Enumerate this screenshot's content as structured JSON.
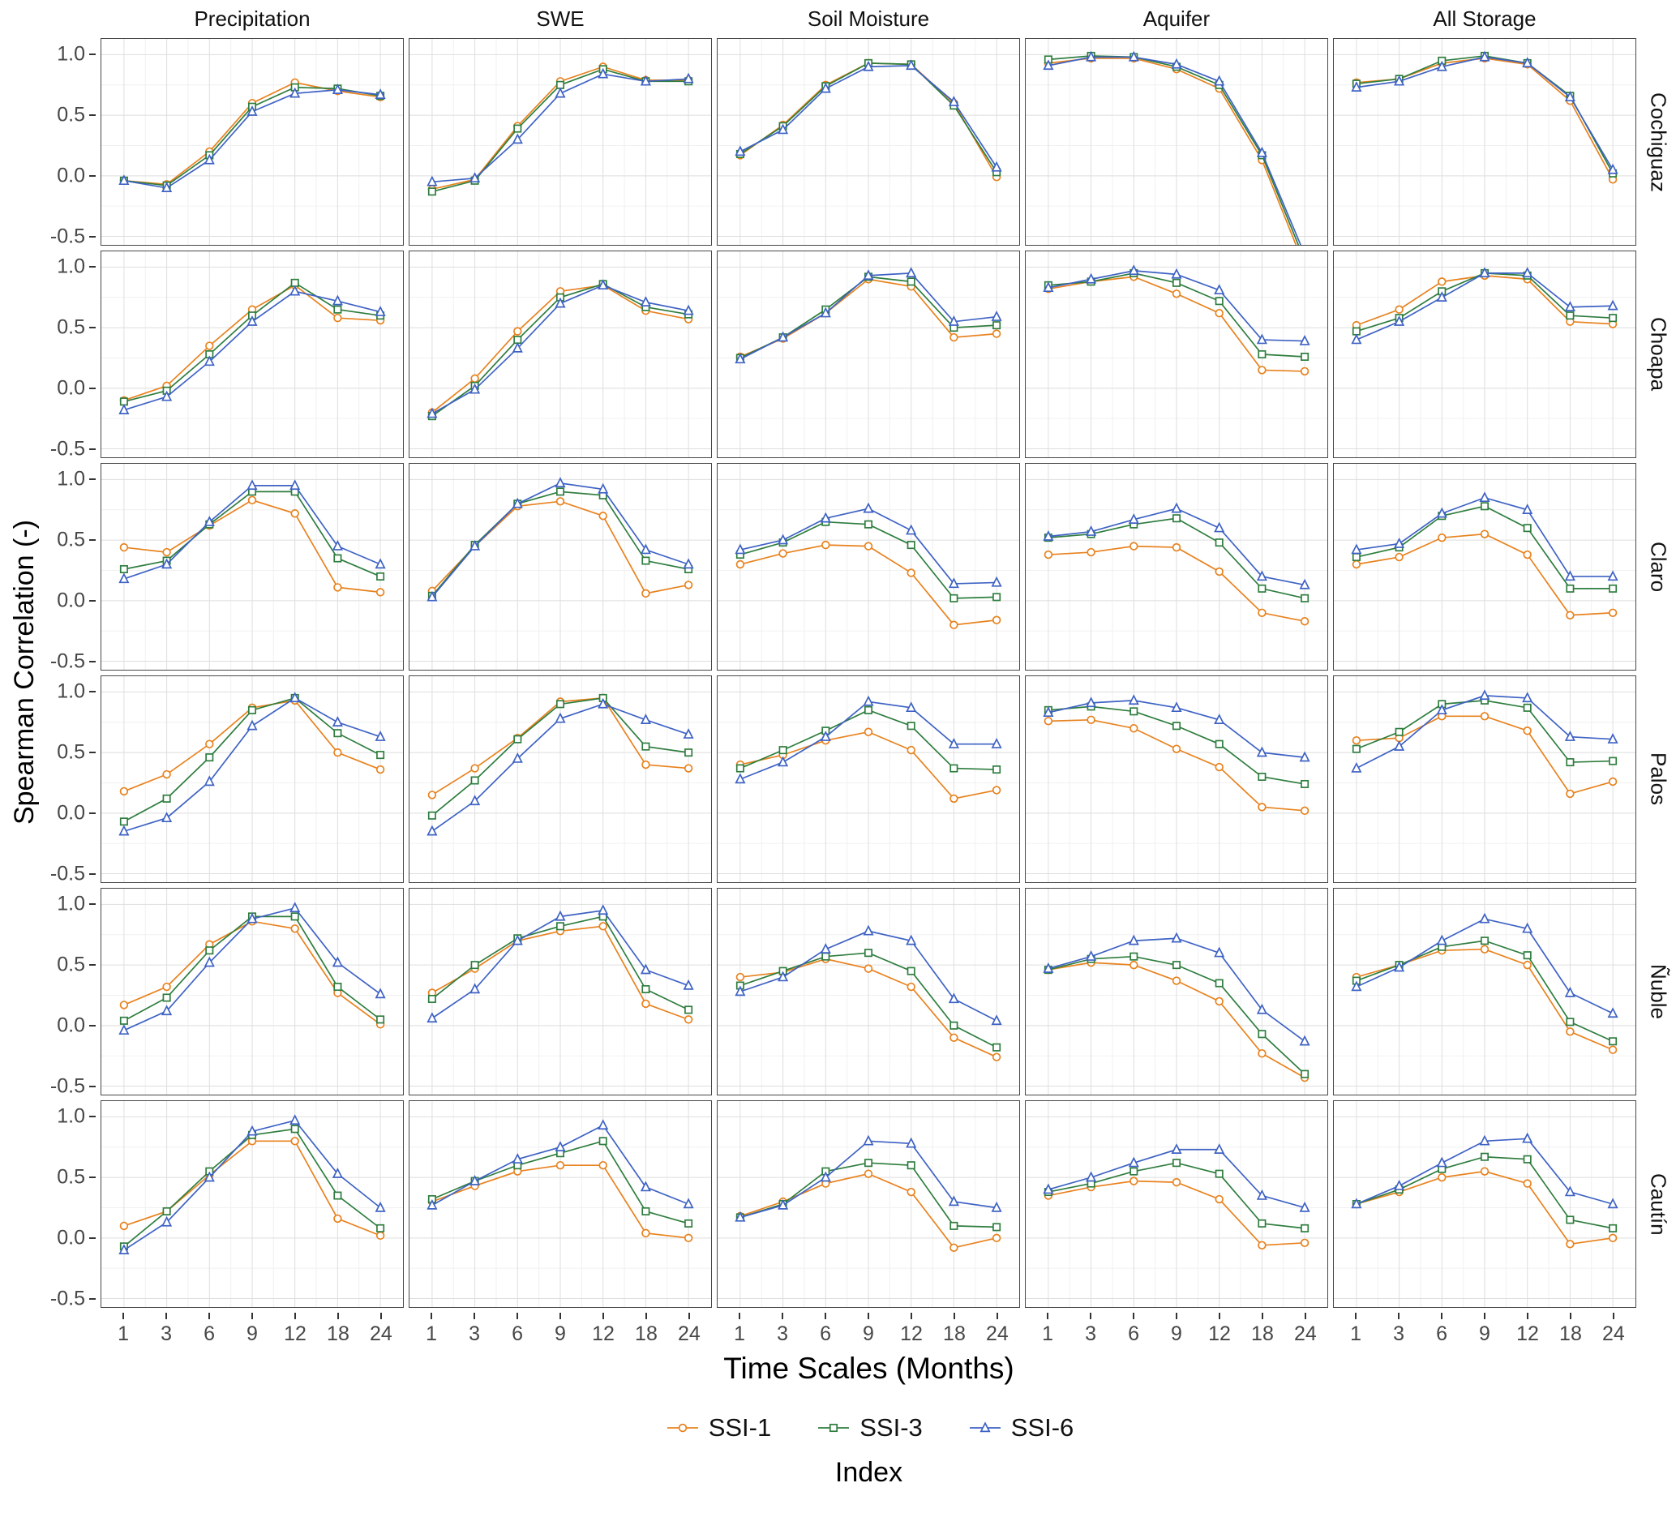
{
  "chart_data": {
    "type": "line",
    "x": [
      1,
      3,
      6,
      9,
      12,
      18,
      24
    ],
    "x_tick_labels": [
      "1",
      "3",
      "6",
      "9",
      "12",
      "18",
      "24"
    ],
    "y_ticks": [
      1.0,
      0.5,
      0.0,
      -0.5
    ],
    "y_tick_labels": [
      "1.0",
      "0.5",
      "0.0",
      "-0.5"
    ],
    "y_minor": [
      0.75,
      0.25,
      -0.25
    ],
    "ylim": [
      -0.57,
      1.13
    ],
    "xlabel": "Time Scales (Months)",
    "ylabel": "Spearman Correlation (-)",
    "legend_title": "Index",
    "grid": true,
    "legend_position": "bottom",
    "col_facets": [
      "Precipitation",
      "SWE",
      "Soil Moisture",
      "Aquifer",
      "All Storage"
    ],
    "row_facets": [
      "Cochiguaz",
      "Choapa",
      "Claro",
      "Palos",
      "Ñuble",
      "Cautín"
    ],
    "series_meta": [
      {
        "name": "SSI-1",
        "color": "#E8821E",
        "marker": "circle"
      },
      {
        "name": "SSI-3",
        "color": "#2E7D3E",
        "marker": "square"
      },
      {
        "name": "SSI-6",
        "color": "#3E62C4",
        "marker": "triangle"
      }
    ],
    "panels": [
      {
        "row": "Cochiguaz",
        "col": "Precipitation",
        "series": {
          "SSI-1": [
            -0.04,
            -0.07,
            0.2,
            0.6,
            0.77,
            0.7,
            0.65
          ],
          "SSI-3": [
            -0.04,
            -0.08,
            0.17,
            0.57,
            0.73,
            0.72,
            0.66
          ],
          "SSI-6": [
            -0.04,
            -0.1,
            0.13,
            0.53,
            0.68,
            0.71,
            0.67
          ]
        }
      },
      {
        "row": "Cochiguaz",
        "col": "SWE",
        "series": {
          "SSI-1": [
            -0.11,
            -0.03,
            0.41,
            0.78,
            0.9,
            0.79,
            0.79
          ],
          "SSI-3": [
            -0.13,
            -0.04,
            0.39,
            0.75,
            0.88,
            0.78,
            0.78
          ],
          "SSI-6": [
            -0.05,
            -0.02,
            0.3,
            0.68,
            0.84,
            0.78,
            0.8
          ]
        }
      },
      {
        "row": "Cochiguaz",
        "col": "Soil Moisture",
        "series": {
          "SSI-1": [
            0.17,
            0.42,
            0.75,
            0.93,
            0.92,
            0.6,
            -0.01
          ],
          "SSI-3": [
            0.18,
            0.41,
            0.74,
            0.93,
            0.92,
            0.58,
            0.03
          ],
          "SSI-6": [
            0.2,
            0.38,
            0.72,
            0.9,
            0.91,
            0.61,
            0.07
          ]
        }
      },
      {
        "row": "Cochiguaz",
        "col": "Aquifer",
        "series": {
          "SSI-1": [
            0.93,
            0.97,
            0.97,
            0.88,
            0.72,
            0.13,
            -0.75
          ],
          "SSI-3": [
            0.96,
            0.99,
            0.98,
            0.9,
            0.75,
            0.17,
            -0.7
          ],
          "SSI-6": [
            0.91,
            0.98,
            0.98,
            0.92,
            0.78,
            0.19,
            -0.65
          ]
        }
      },
      {
        "row": "Cochiguaz",
        "col": "All Storage",
        "series": {
          "SSI-1": [
            0.77,
            0.8,
            0.93,
            0.97,
            0.92,
            0.62,
            -0.03
          ],
          "SSI-3": [
            0.76,
            0.8,
            0.95,
            0.99,
            0.93,
            0.66,
            0.02
          ],
          "SSI-6": [
            0.73,
            0.78,
            0.9,
            0.98,
            0.93,
            0.65,
            0.05
          ]
        }
      },
      {
        "row": "Choapa",
        "col": "Precipitation",
        "series": {
          "SSI-1": [
            -0.1,
            0.02,
            0.35,
            0.65,
            0.85,
            0.58,
            0.56
          ],
          "SSI-3": [
            -0.11,
            -0.02,
            0.28,
            0.6,
            0.87,
            0.65,
            0.6
          ],
          "SSI-6": [
            -0.18,
            -0.07,
            0.22,
            0.55,
            0.8,
            0.72,
            0.63
          ]
        }
      },
      {
        "row": "Choapa",
        "col": "SWE",
        "series": {
          "SSI-1": [
            -0.2,
            0.08,
            0.47,
            0.8,
            0.85,
            0.64,
            0.57
          ],
          "SSI-3": [
            -0.23,
            0.02,
            0.4,
            0.75,
            0.86,
            0.67,
            0.61
          ],
          "SSI-6": [
            -0.21,
            -0.01,
            0.33,
            0.7,
            0.85,
            0.71,
            0.64
          ]
        }
      },
      {
        "row": "Choapa",
        "col": "Soil Moisture",
        "series": {
          "SSI-1": [
            0.26,
            0.41,
            0.62,
            0.9,
            0.84,
            0.42,
            0.45
          ],
          "SSI-3": [
            0.25,
            0.42,
            0.65,
            0.92,
            0.88,
            0.5,
            0.52
          ],
          "SSI-6": [
            0.24,
            0.42,
            0.62,
            0.93,
            0.95,
            0.55,
            0.59
          ]
        }
      },
      {
        "row": "Choapa",
        "col": "Aquifer",
        "series": {
          "SSI-1": [
            0.82,
            0.88,
            0.92,
            0.78,
            0.62,
            0.15,
            0.14
          ],
          "SSI-3": [
            0.85,
            0.88,
            0.95,
            0.87,
            0.72,
            0.28,
            0.26
          ],
          "SSI-6": [
            0.83,
            0.9,
            0.97,
            0.94,
            0.81,
            0.4,
            0.39
          ]
        }
      },
      {
        "row": "Choapa",
        "col": "All Storage",
        "series": {
          "SSI-1": [
            0.52,
            0.65,
            0.88,
            0.93,
            0.9,
            0.55,
            0.53
          ],
          "SSI-3": [
            0.47,
            0.58,
            0.8,
            0.95,
            0.93,
            0.6,
            0.58
          ],
          "SSI-6": [
            0.4,
            0.55,
            0.75,
            0.95,
            0.95,
            0.67,
            0.68
          ]
        }
      },
      {
        "row": "Claro",
        "col": "Precipitation",
        "series": {
          "SSI-1": [
            0.44,
            0.4,
            0.62,
            0.83,
            0.72,
            0.11,
            0.07
          ],
          "SSI-3": [
            0.26,
            0.33,
            0.63,
            0.9,
            0.9,
            0.35,
            0.2
          ],
          "SSI-6": [
            0.18,
            0.3,
            0.65,
            0.95,
            0.95,
            0.45,
            0.3
          ]
        }
      },
      {
        "row": "Claro",
        "col": "SWE",
        "series": {
          "SSI-1": [
            0.08,
            0.45,
            0.78,
            0.82,
            0.7,
            0.06,
            0.13
          ],
          "SSI-3": [
            0.04,
            0.46,
            0.8,
            0.9,
            0.87,
            0.33,
            0.26
          ],
          "SSI-6": [
            0.03,
            0.45,
            0.8,
            0.97,
            0.92,
            0.42,
            0.3
          ]
        }
      },
      {
        "row": "Claro",
        "col": "Soil Moisture",
        "series": {
          "SSI-1": [
            0.3,
            0.39,
            0.46,
            0.45,
            0.23,
            -0.2,
            -0.16
          ],
          "SSI-3": [
            0.38,
            0.48,
            0.65,
            0.63,
            0.46,
            0.02,
            0.03
          ],
          "SSI-6": [
            0.42,
            0.5,
            0.68,
            0.76,
            0.58,
            0.14,
            0.15
          ]
        }
      },
      {
        "row": "Claro",
        "col": "Aquifer",
        "series": {
          "SSI-1": [
            0.38,
            0.4,
            0.45,
            0.44,
            0.24,
            -0.1,
            -0.17
          ],
          "SSI-3": [
            0.52,
            0.55,
            0.63,
            0.68,
            0.48,
            0.1,
            0.02
          ],
          "SSI-6": [
            0.53,
            0.57,
            0.67,
            0.76,
            0.6,
            0.2,
            0.13
          ]
        }
      },
      {
        "row": "Claro",
        "col": "All Storage",
        "series": {
          "SSI-1": [
            0.3,
            0.36,
            0.52,
            0.55,
            0.38,
            -0.12,
            -0.1
          ],
          "SSI-3": [
            0.36,
            0.44,
            0.7,
            0.78,
            0.6,
            0.1,
            0.1
          ],
          "SSI-6": [
            0.42,
            0.47,
            0.72,
            0.85,
            0.75,
            0.2,
            0.2
          ]
        }
      },
      {
        "row": "Palos",
        "col": "Precipitation",
        "series": {
          "SSI-1": [
            0.18,
            0.32,
            0.57,
            0.87,
            0.93,
            0.5,
            0.36
          ],
          "SSI-3": [
            -0.07,
            0.12,
            0.46,
            0.85,
            0.95,
            0.66,
            0.48
          ],
          "SSI-6": [
            -0.15,
            -0.04,
            0.26,
            0.72,
            0.95,
            0.75,
            0.63
          ]
        }
      },
      {
        "row": "Palos",
        "col": "SWE",
        "series": {
          "SSI-1": [
            0.15,
            0.37,
            0.62,
            0.92,
            0.95,
            0.4,
            0.37
          ],
          "SSI-3": [
            -0.02,
            0.27,
            0.61,
            0.9,
            0.95,
            0.55,
            0.5
          ],
          "SSI-6": [
            -0.15,
            0.1,
            0.45,
            0.78,
            0.9,
            0.77,
            0.65
          ]
        }
      },
      {
        "row": "Palos",
        "col": "Soil Moisture",
        "series": {
          "SSI-1": [
            0.4,
            0.48,
            0.6,
            0.67,
            0.52,
            0.12,
            0.19
          ],
          "SSI-3": [
            0.37,
            0.52,
            0.68,
            0.85,
            0.72,
            0.37,
            0.36
          ],
          "SSI-6": [
            0.28,
            0.42,
            0.63,
            0.92,
            0.87,
            0.57,
            0.57
          ]
        }
      },
      {
        "row": "Palos",
        "col": "Aquifer",
        "series": {
          "SSI-1": [
            0.76,
            0.77,
            0.7,
            0.53,
            0.38,
            0.05,
            0.02
          ],
          "SSI-3": [
            0.85,
            0.88,
            0.84,
            0.72,
            0.57,
            0.3,
            0.24
          ],
          "SSI-6": [
            0.83,
            0.91,
            0.93,
            0.87,
            0.77,
            0.5,
            0.46
          ]
        }
      },
      {
        "row": "Palos",
        "col": "All Storage",
        "series": {
          "SSI-1": [
            0.6,
            0.62,
            0.8,
            0.8,
            0.68,
            0.16,
            0.26
          ],
          "SSI-3": [
            0.53,
            0.67,
            0.9,
            0.93,
            0.87,
            0.42,
            0.43
          ],
          "SSI-6": [
            0.37,
            0.55,
            0.85,
            0.97,
            0.95,
            0.63,
            0.61
          ]
        }
      },
      {
        "row": "Ñuble",
        "col": "Precipitation",
        "series": {
          "SSI-1": [
            0.17,
            0.32,
            0.67,
            0.86,
            0.8,
            0.27,
            0.01
          ],
          "SSI-3": [
            0.04,
            0.23,
            0.62,
            0.9,
            0.9,
            0.32,
            0.05
          ],
          "SSI-6": [
            -0.04,
            0.12,
            0.52,
            0.88,
            0.97,
            0.52,
            0.26
          ]
        }
      },
      {
        "row": "Ñuble",
        "col": "SWE",
        "series": {
          "SSI-1": [
            0.27,
            0.47,
            0.7,
            0.78,
            0.82,
            0.18,
            0.05
          ],
          "SSI-3": [
            0.22,
            0.5,
            0.72,
            0.82,
            0.9,
            0.3,
            0.13
          ],
          "SSI-6": [
            0.06,
            0.3,
            0.7,
            0.9,
            0.95,
            0.46,
            0.33
          ]
        }
      },
      {
        "row": "Ñuble",
        "col": "Soil Moisture",
        "series": {
          "SSI-1": [
            0.4,
            0.44,
            0.55,
            0.47,
            0.32,
            -0.1,
            -0.26
          ],
          "SSI-3": [
            0.33,
            0.45,
            0.57,
            0.6,
            0.45,
            0.0,
            -0.18
          ],
          "SSI-6": [
            0.28,
            0.4,
            0.63,
            0.78,
            0.7,
            0.22,
            0.04
          ]
        }
      },
      {
        "row": "Ñuble",
        "col": "Aquifer",
        "series": {
          "SSI-1": [
            0.46,
            0.52,
            0.5,
            0.37,
            0.2,
            -0.23,
            -0.43
          ],
          "SSI-3": [
            0.46,
            0.55,
            0.57,
            0.5,
            0.35,
            -0.07,
            -0.4
          ],
          "SSI-6": [
            0.47,
            0.57,
            0.7,
            0.72,
            0.6,
            0.13,
            -0.13
          ]
        }
      },
      {
        "row": "Ñuble",
        "col": "All Storage",
        "series": {
          "SSI-1": [
            0.4,
            0.5,
            0.62,
            0.63,
            0.5,
            -0.05,
            -0.2
          ],
          "SSI-3": [
            0.37,
            0.5,
            0.65,
            0.7,
            0.58,
            0.03,
            -0.13
          ],
          "SSI-6": [
            0.32,
            0.48,
            0.7,
            0.88,
            0.8,
            0.27,
            0.1
          ]
        }
      },
      {
        "row": "Cautín",
        "col": "Precipitation",
        "series": {
          "SSI-1": [
            0.1,
            0.22,
            0.52,
            0.8,
            0.8,
            0.16,
            0.02
          ],
          "SSI-3": [
            -0.07,
            0.22,
            0.55,
            0.85,
            0.9,
            0.35,
            0.08
          ],
          "SSI-6": [
            -0.1,
            0.13,
            0.5,
            0.88,
            0.97,
            0.53,
            0.25
          ]
        }
      },
      {
        "row": "Cautín",
        "col": "SWE",
        "series": {
          "SSI-1": [
            0.3,
            0.43,
            0.55,
            0.6,
            0.6,
            0.04,
            0.0
          ],
          "SSI-3": [
            0.32,
            0.47,
            0.6,
            0.7,
            0.8,
            0.22,
            0.12
          ],
          "SSI-6": [
            0.27,
            0.47,
            0.65,
            0.75,
            0.93,
            0.42,
            0.28
          ]
        }
      },
      {
        "row": "Cautín",
        "col": "Soil Moisture",
        "series": {
          "SSI-1": [
            0.18,
            0.3,
            0.45,
            0.53,
            0.38,
            -0.08,
            0.0
          ],
          "SSI-3": [
            0.17,
            0.28,
            0.55,
            0.62,
            0.6,
            0.1,
            0.09
          ],
          "SSI-6": [
            0.17,
            0.27,
            0.5,
            0.8,
            0.78,
            0.3,
            0.25
          ]
        }
      },
      {
        "row": "Cautín",
        "col": "Aquifer",
        "series": {
          "SSI-1": [
            0.35,
            0.42,
            0.47,
            0.46,
            0.32,
            -0.06,
            -0.04
          ],
          "SSI-3": [
            0.38,
            0.45,
            0.55,
            0.62,
            0.53,
            0.12,
            0.08
          ],
          "SSI-6": [
            0.4,
            0.5,
            0.62,
            0.73,
            0.73,
            0.35,
            0.25
          ]
        }
      },
      {
        "row": "Cautín",
        "col": "All Storage",
        "series": {
          "SSI-1": [
            0.28,
            0.38,
            0.5,
            0.55,
            0.45,
            -0.05,
            0.0
          ],
          "SSI-3": [
            0.28,
            0.4,
            0.57,
            0.67,
            0.65,
            0.15,
            0.08
          ],
          "SSI-6": [
            0.28,
            0.43,
            0.62,
            0.8,
            0.82,
            0.38,
            0.28
          ]
        }
      }
    ]
  }
}
